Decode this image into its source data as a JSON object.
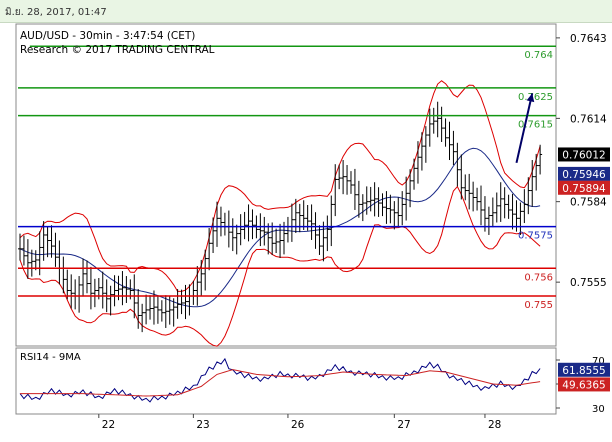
{
  "header": {
    "timestamp": "มิ.ย. 28, 2017, 01:47"
  },
  "chart_data": [
    {
      "type": "line",
      "subtype": "bar-ohlc",
      "title": "AUD/USD - 30min - 3:47:54 (CET)",
      "subtitle": "Research © 2017 TRADING CENTRAL",
      "ylim": [
        0.7532,
        0.7648
      ],
      "y_ticks": [
        "0.7643",
        "0.7614",
        "0.7584",
        "0.7555"
      ],
      "x_ticks": [
        "22",
        "23",
        "26",
        "27",
        "28"
      ],
      "grid": false,
      "price_series_path": [
        [
          0,
          0.7567
        ],
        [
          2,
          0.7562
        ],
        [
          4,
          0.7563
        ],
        [
          6,
          0.7572
        ],
        [
          8,
          0.7568
        ],
        [
          10,
          0.756
        ],
        [
          12,
          0.7552
        ],
        [
          14,
          0.755
        ],
        [
          16,
          0.7558
        ],
        [
          18,
          0.7551
        ],
        [
          20,
          0.7553
        ],
        [
          22,
          0.7549
        ],
        [
          24,
          0.7552
        ],
        [
          26,
          0.7553
        ],
        [
          28,
          0.7552
        ],
        [
          30,
          0.7543
        ],
        [
          32,
          0.7545
        ],
        [
          34,
          0.7546
        ],
        [
          36,
          0.7544
        ],
        [
          38,
          0.7545
        ],
        [
          40,
          0.7547
        ],
        [
          42,
          0.7548
        ],
        [
          44,
          0.7552
        ],
        [
          46,
          0.7558
        ],
        [
          48,
          0.7569
        ],
        [
          50,
          0.7578
        ],
        [
          52,
          0.7575
        ],
        [
          54,
          0.7571
        ],
        [
          56,
          0.7574
        ],
        [
          58,
          0.7577
        ],
        [
          60,
          0.7574
        ],
        [
          62,
          0.7573
        ],
        [
          64,
          0.7569
        ],
        [
          66,
          0.757
        ],
        [
          68,
          0.7575
        ],
        [
          70,
          0.758
        ],
        [
          72,
          0.7578
        ],
        [
          74,
          0.7576
        ],
        [
          76,
          0.7568
        ],
        [
          78,
          0.7574
        ],
        [
          80,
          0.7592
        ],
        [
          82,
          0.7593
        ],
        [
          84,
          0.759
        ],
        [
          86,
          0.7583
        ],
        [
          88,
          0.7584
        ],
        [
          90,
          0.7585
        ],
        [
          92,
          0.7582
        ],
        [
          94,
          0.7581
        ],
        [
          96,
          0.7579
        ],
        [
          98,
          0.7587
        ],
        [
          100,
          0.7596
        ],
        [
          102,
          0.7604
        ],
        [
          104,
          0.7612
        ],
        [
          106,
          0.7614
        ],
        [
          108,
          0.7607
        ],
        [
          110,
          0.7602
        ],
        [
          112,
          0.7589
        ],
        [
          114,
          0.7587
        ],
        [
          116,
          0.7584
        ],
        [
          118,
          0.7578
        ],
        [
          120,
          0.758
        ],
        [
          122,
          0.7585
        ],
        [
          124,
          0.7581
        ],
        [
          126,
          0.7578
        ],
        [
          128,
          0.7583
        ],
        [
          130,
          0.7593
        ],
        [
          132,
          0.7601
        ]
      ],
      "support_resistance": [
        {
          "value": 0.764,
          "label": "0.764",
          "color": "#2e9c2e",
          "line_color": "#139613",
          "xmin": 3
        },
        {
          "value": 0.7625,
          "label": "0.7625",
          "color": "#2e9c2e",
          "line_color": "#139613",
          "xmin": 0
        },
        {
          "value": 0.7615,
          "label": "0.7615",
          "color": "#2e9c2e",
          "line_color": "#139613",
          "xmin": 0
        },
        {
          "value": 0.7575,
          "label": "0.7575",
          "color": "#2233bb",
          "line_color": "#0000cc",
          "xmin": 0
        },
        {
          "value": 0.756,
          "label": "0.756",
          "color": "#cc2222",
          "line_color": "#dd0000",
          "xmin": 0
        },
        {
          "value": 0.755,
          "label": "0.755",
          "color": "#cc2222",
          "line_color": "#dd0000",
          "xmin": 0
        }
      ],
      "price_badges": [
        {
          "value": 0.7601,
          "label": "0.76012",
          "bg": "#000000",
          "fg": "#ffffff"
        },
        {
          "value": 0.7594,
          "label": "0.75946",
          "bg": "#1a2a88",
          "fg": "#ffffff"
        },
        {
          "value": 0.7589,
          "label": "0.75894",
          "bg": "#cc2222",
          "fg": "#ffffff"
        }
      ],
      "colors": {
        "price": "#000000",
        "moving_average": "#1a2a88",
        "bollinger": "#dd0000",
        "arrow": "#000066"
      }
    },
    {
      "type": "line",
      "title": "RSI14 - 9MA",
      "ylim": [
        25,
        80
      ],
      "y_ticks": [
        "70",
        "50",
        "30"
      ],
      "series": [
        {
          "name": "RSI14",
          "color": "#000080",
          "points": [
            [
              0,
              40
            ],
            [
              4,
              38
            ],
            [
              8,
              44
            ],
            [
              12,
              41
            ],
            [
              16,
              43
            ],
            [
              20,
              39
            ],
            [
              24,
              44
            ],
            [
              28,
              41
            ],
            [
              32,
              36
            ],
            [
              36,
              39
            ],
            [
              40,
              42
            ],
            [
              44,
              48
            ],
            [
              48,
              62
            ],
            [
              52,
              70
            ],
            [
              54,
              60
            ],
            [
              58,
              56
            ],
            [
              62,
              54
            ],
            [
              66,
              58
            ],
            [
              70,
              57
            ],
            [
              74,
              54
            ],
            [
              78,
              60
            ],
            [
              80,
              64
            ],
            [
              84,
              60
            ],
            [
              88,
              58
            ],
            [
              92,
              56
            ],
            [
              96,
              54
            ],
            [
              100,
              60
            ],
            [
              104,
              66
            ],
            [
              106,
              64
            ],
            [
              110,
              55
            ],
            [
              114,
              50
            ],
            [
              118,
              46
            ],
            [
              122,
              50
            ],
            [
              126,
              47
            ],
            [
              128,
              52
            ],
            [
              130,
              58
            ],
            [
              132,
              62
            ]
          ]
        },
        {
          "name": "9MA",
          "color": "#cc2222",
          "points": [
            [
              0,
              42
            ],
            [
              8,
              42
            ],
            [
              16,
              42
            ],
            [
              24,
              41
            ],
            [
              32,
              40
            ],
            [
              40,
              41
            ],
            [
              46,
              48
            ],
            [
              50,
              58
            ],
            [
              54,
              62
            ],
            [
              60,
              58
            ],
            [
              68,
              56
            ],
            [
              76,
              57
            ],
            [
              82,
              60
            ],
            [
              90,
              58
            ],
            [
              98,
              57
            ],
            [
              104,
              61
            ],
            [
              108,
              60
            ],
            [
              114,
              55
            ],
            [
              120,
              50
            ],
            [
              126,
              49
            ],
            [
              132,
              52
            ]
          ]
        }
      ],
      "value_badges": [
        {
          "value": 61.8555,
          "label": "61.8555",
          "bg": "#1a2a88",
          "fg": "#ffffff"
        },
        {
          "value": 49.6365,
          "label": "49.6365",
          "bg": "#cc2222",
          "fg": "#ffffff"
        }
      ]
    }
  ]
}
